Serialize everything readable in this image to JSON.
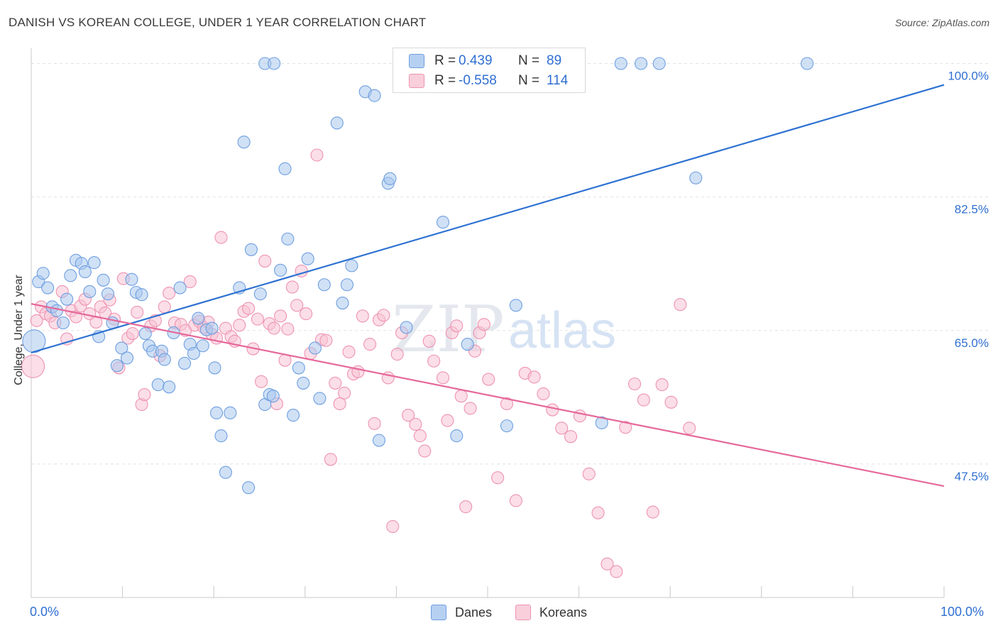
{
  "title": "DANISH VS KOREAN COLLEGE, UNDER 1 YEAR CORRELATION CHART",
  "source": "Source: ZipAtlas.com",
  "watermark": {
    "zip": "ZIP",
    "atlas": "atlas"
  },
  "colors": {
    "danes_fill": "#aac8ee",
    "danes_stroke": "#6f9fe0",
    "danes_line": "#2e72d2",
    "koreans_fill": "#f7c3d3",
    "koreans_stroke": "#ee93b2",
    "koreans_line": "#e6689a",
    "tick_text": "#2f6fd1",
    "grid": "#e2e2e2"
  },
  "legend": {
    "rows": [
      {
        "r_label": "R =",
        "r_value": "0.439",
        "n_label": "N =",
        "n_value": "89"
      },
      {
        "r_label": "R =",
        "r_value": "-0.558",
        "n_label": "N =",
        "n_value": "114"
      }
    ]
  },
  "bottom_legend": {
    "danes": "Danes",
    "koreans": "Koreans"
  },
  "x_labels": {
    "left": "0.0%",
    "right": "100.0%"
  },
  "chart_data": {
    "type": "scatter",
    "title": "DANISH VS KOREAN COLLEGE, UNDER 1 YEAR CORRELATION CHART",
    "xlabel": "",
    "ylabel": "College, Under 1 year",
    "xlim": [
      0,
      100
    ],
    "ylim": [
      30,
      102
    ],
    "y_ticks": [
      {
        "value": 100,
        "label": "100.0%"
      },
      {
        "value": 82.5,
        "label": "82.5%"
      },
      {
        "value": 65,
        "label": "65.0%"
      },
      {
        "value": 47.5,
        "label": "47.5%"
      }
    ],
    "grid": true,
    "legend_position": "top-center",
    "series": [
      {
        "name": "Danes",
        "r": 0.439,
        "n": 89,
        "trend": {
          "x": [
            0,
            100
          ],
          "y": [
            62.1,
            97.2
          ]
        },
        "points": [
          [
            0.3,
            63.6
          ],
          [
            0.8,
            71.4
          ],
          [
            1.3,
            72.5
          ],
          [
            1.8,
            70.6
          ],
          [
            2.3,
            68.1
          ],
          [
            2.8,
            67.6
          ],
          [
            3.5,
            66.0
          ],
          [
            3.9,
            69.1
          ],
          [
            4.3,
            72.2
          ],
          [
            4.9,
            74.2
          ],
          [
            5.5,
            73.8
          ],
          [
            5.9,
            72.7
          ],
          [
            6.4,
            70.1
          ],
          [
            6.9,
            73.9
          ],
          [
            7.4,
            64.2
          ],
          [
            7.9,
            71.6
          ],
          [
            8.4,
            69.8
          ],
          [
            8.9,
            66.0
          ],
          [
            9.4,
            60.4
          ],
          [
            9.9,
            62.7
          ],
          [
            10.5,
            61.4
          ],
          [
            11.0,
            71.7
          ],
          [
            11.5,
            70.0
          ],
          [
            12.1,
            69.7
          ],
          [
            12.5,
            64.6
          ],
          [
            12.9,
            63.0
          ],
          [
            13.3,
            62.3
          ],
          [
            13.9,
            57.9
          ],
          [
            14.3,
            62.3
          ],
          [
            14.6,
            61.2
          ],
          [
            15.1,
            57.6
          ],
          [
            15.6,
            64.7
          ],
          [
            16.3,
            70.6
          ],
          [
            16.8,
            60.7
          ],
          [
            17.4,
            63.2
          ],
          [
            17.8,
            62.0
          ],
          [
            18.3,
            66.6
          ],
          [
            18.8,
            63.0
          ],
          [
            19.2,
            65.1
          ],
          [
            19.8,
            65.3
          ],
          [
            20.1,
            60.1
          ],
          [
            20.3,
            54.2
          ],
          [
            20.8,
            51.2
          ],
          [
            21.3,
            46.4
          ],
          [
            21.8,
            54.2
          ],
          [
            22.8,
            70.6
          ],
          [
            23.3,
            89.7
          ],
          [
            23.8,
            44.4
          ],
          [
            24.1,
            75.6
          ],
          [
            25.1,
            69.8
          ],
          [
            25.6,
            55.3
          ],
          [
            26.1,
            56.6
          ],
          [
            26.5,
            56.4
          ],
          [
            27.3,
            72.9
          ],
          [
            27.8,
            86.2
          ],
          [
            28.1,
            77.0
          ],
          [
            28.7,
            53.9
          ],
          [
            29.3,
            60.1
          ],
          [
            29.8,
            58.1
          ],
          [
            30.3,
            74.4
          ],
          [
            31.1,
            62.7
          ],
          [
            31.6,
            56.1
          ],
          [
            32.1,
            71.0
          ],
          [
            33.5,
            92.2
          ],
          [
            34.1,
            68.6
          ],
          [
            34.6,
            71.0
          ],
          [
            35.1,
            73.5
          ],
          [
            36.6,
            96.3
          ],
          [
            37.6,
            95.8
          ],
          [
            38.1,
            50.6
          ],
          [
            39.1,
            84.3
          ],
          [
            39.3,
            84.9
          ],
          [
            41.1,
            65.4
          ],
          [
            45.1,
            79.2
          ],
          [
            46.6,
            51.2
          ],
          [
            47.8,
            63.2
          ],
          [
            52.1,
            52.5
          ],
          [
            53.1,
            68.3
          ],
          [
            62.5,
            52.9
          ],
          [
            25.6,
            100.0
          ],
          [
            26.6,
            100.0
          ],
          [
            44.8,
            100.0
          ],
          [
            46.1,
            100.0
          ],
          [
            64.6,
            100.0
          ],
          [
            66.8,
            100.0
          ],
          [
            68.8,
            100.0
          ],
          [
            85.0,
            100.0
          ],
          [
            72.8,
            85.0
          ]
        ]
      },
      {
        "name": "Koreans",
        "r": -0.558,
        "n": 114,
        "trend": {
          "x": [
            0,
            100
          ],
          "y": [
            68.5,
            44.6
          ]
        },
        "points": [
          [
            0.2,
            60.3
          ],
          [
            0.6,
            66.3
          ],
          [
            1.1,
            68.1
          ],
          [
            1.6,
            67.2
          ],
          [
            2.1,
            66.9
          ],
          [
            2.6,
            66.0
          ],
          [
            3.4,
            70.1
          ],
          [
            3.9,
            63.9
          ],
          [
            4.4,
            67.6
          ],
          [
            4.9,
            66.8
          ],
          [
            5.4,
            68.2
          ],
          [
            5.9,
            69.1
          ],
          [
            6.4,
            67.2
          ],
          [
            7.1,
            66.1
          ],
          [
            7.6,
            68.1
          ],
          [
            8.1,
            67.3
          ],
          [
            8.6,
            69.0
          ],
          [
            9.1,
            66.5
          ],
          [
            9.6,
            60.1
          ],
          [
            10.1,
            71.8
          ],
          [
            10.6,
            64.0
          ],
          [
            11.1,
            64.6
          ],
          [
            11.6,
            67.4
          ],
          [
            12.1,
            55.3
          ],
          [
            12.4,
            56.6
          ],
          [
            13.1,
            65.6
          ],
          [
            13.6,
            66.3
          ],
          [
            14.1,
            61.7
          ],
          [
            14.6,
            68.1
          ],
          [
            15.1,
            69.9
          ],
          [
            15.7,
            66.0
          ],
          [
            16.4,
            65.8
          ],
          [
            16.9,
            65.0
          ],
          [
            17.4,
            71.4
          ],
          [
            17.9,
            65.7
          ],
          [
            18.4,
            66.2
          ],
          [
            18.9,
            65.4
          ],
          [
            19.4,
            66.1
          ],
          [
            19.8,
            64.5
          ],
          [
            20.3,
            64.0
          ],
          [
            20.8,
            77.2
          ],
          [
            21.3,
            65.3
          ],
          [
            21.9,
            64.2
          ],
          [
            22.3,
            63.6
          ],
          [
            22.8,
            65.7
          ],
          [
            23.3,
            67.5
          ],
          [
            23.8,
            67.9
          ],
          [
            24.3,
            62.6
          ],
          [
            24.8,
            66.5
          ],
          [
            25.2,
            58.3
          ],
          [
            25.6,
            74.1
          ],
          [
            26.1,
            65.9
          ],
          [
            26.6,
            65.3
          ],
          [
            26.9,
            55.4
          ],
          [
            27.3,
            66.9
          ],
          [
            27.8,
            61.1
          ],
          [
            28.1,
            65.2
          ],
          [
            28.6,
            70.7
          ],
          [
            29.1,
            68.3
          ],
          [
            29.6,
            72.8
          ],
          [
            30.1,
            67.2
          ],
          [
            30.6,
            62.0
          ],
          [
            31.3,
            88.0
          ],
          [
            31.8,
            63.8
          ],
          [
            32.3,
            63.7
          ],
          [
            32.8,
            48.1
          ],
          [
            33.3,
            58.1
          ],
          [
            33.8,
            55.4
          ],
          [
            34.3,
            56.8
          ],
          [
            34.8,
            62.2
          ],
          [
            35.3,
            59.3
          ],
          [
            35.8,
            59.6
          ],
          [
            36.3,
            66.9
          ],
          [
            37.1,
            63.2
          ],
          [
            37.6,
            52.8
          ],
          [
            38.1,
            66.4
          ],
          [
            38.6,
            67.0
          ],
          [
            39.1,
            58.8
          ],
          [
            39.6,
            39.3
          ],
          [
            40.1,
            61.9
          ],
          [
            40.6,
            64.7
          ],
          [
            41.3,
            53.9
          ],
          [
            42.1,
            52.7
          ],
          [
            42.6,
            51.2
          ],
          [
            43.1,
            49.2
          ],
          [
            43.6,
            63.6
          ],
          [
            44.1,
            61.0
          ],
          [
            45.1,
            58.8
          ],
          [
            45.6,
            53.2
          ],
          [
            46.1,
            64.7
          ],
          [
            46.6,
            65.6
          ],
          [
            47.1,
            56.4
          ],
          [
            47.6,
            41.9
          ],
          [
            48.1,
            54.8
          ],
          [
            48.6,
            62.3
          ],
          [
            49.1,
            64.7
          ],
          [
            49.6,
            65.8
          ],
          [
            50.1,
            58.6
          ],
          [
            51.1,
            45.7
          ],
          [
            52.1,
            55.4
          ],
          [
            53.1,
            42.7
          ],
          [
            54.1,
            59.4
          ],
          [
            55.1,
            58.9
          ],
          [
            56.1,
            56.7
          ],
          [
            57.1,
            54.6
          ],
          [
            58.1,
            52.2
          ],
          [
            59.1,
            51.1
          ],
          [
            60.1,
            53.8
          ],
          [
            61.1,
            46.2
          ],
          [
            62.1,
            41.1
          ],
          [
            63.1,
            34.4
          ],
          [
            64.1,
            33.4
          ],
          [
            65.1,
            52.3
          ],
          [
            66.1,
            58.0
          ],
          [
            67.1,
            55.9
          ],
          [
            68.1,
            41.2
          ],
          [
            69.1,
            57.9
          ],
          [
            70.1,
            55.6
          ],
          [
            71.1,
            68.4
          ],
          [
            72.1,
            52.2
          ]
        ]
      }
    ]
  }
}
